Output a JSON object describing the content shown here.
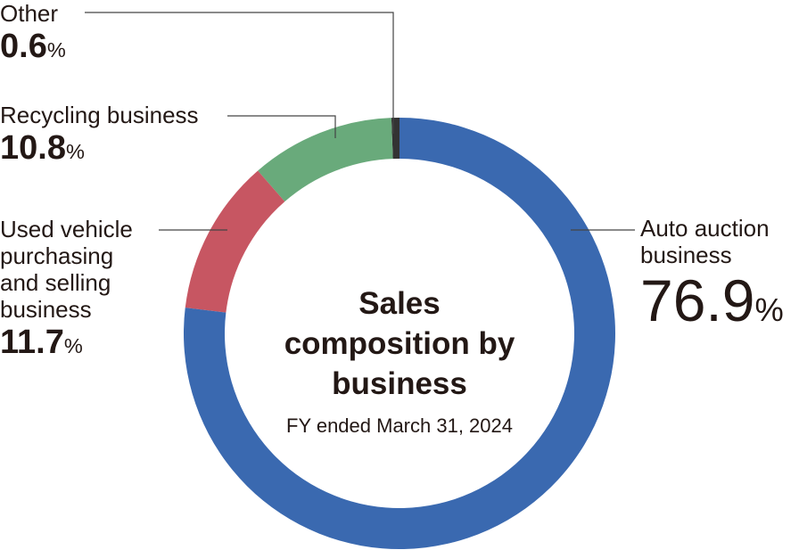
{
  "chart_data": {
    "type": "pie",
    "donut": true,
    "title": "Sales composition by business",
    "subtitle": "FY ended March 31, 2024",
    "categories": [
      "Auto auction business",
      "Used vehicle purchasing and selling business",
      "Recycling business",
      "Other"
    ],
    "values": [
      76.9,
      11.7,
      10.8,
      0.6
    ],
    "value_labels": [
      "76.9%",
      "11.7%",
      "10.8%",
      "0.6%"
    ],
    "colors": [
      "#3a69b0",
      "#c75662",
      "#69aa7b",
      "#333333"
    ]
  }
}
